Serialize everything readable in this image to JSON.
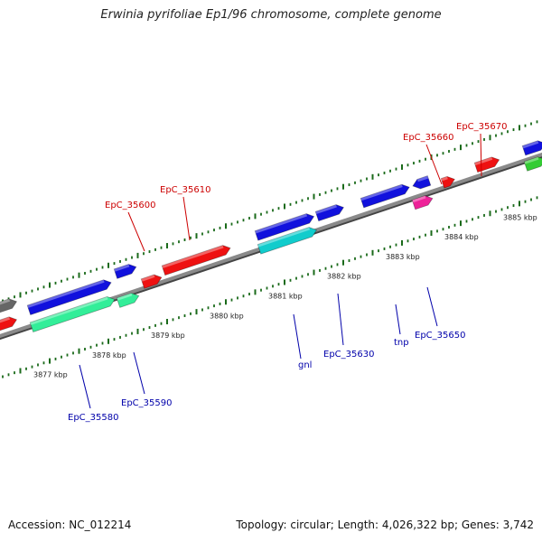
{
  "title": "Erwinia pyrifoliae Ep1/96 chromosome, complete genome",
  "footer": {
    "accession": "Accession: NC_012214",
    "summary": "Topology: circular; Length: 4,026,322 bp; Genes: 3,742"
  },
  "colors": {
    "backbone": "#8a8a8a",
    "top_strand_label": "#cc0000",
    "bottom_strand_label": "#0000aa",
    "tick": "#1a6a1a",
    "red": "#ee1111",
    "blue": "#1111dd",
    "mint": "#33ee99",
    "cyan": "#11cccc",
    "magenta": "#ee2299",
    "green": "#33cc33",
    "gray": "#666666"
  },
  "scale": {
    "unit": "kbp",
    "ticks": [
      {
        "kbp": 3877,
        "label": "3877 kbp"
      },
      {
        "kbp": 3878,
        "label": "3878 kbp"
      },
      {
        "kbp": 3879,
        "label": "3879 kbp"
      },
      {
        "kbp": 3880,
        "label": "3880 kbp"
      },
      {
        "kbp": 3881,
        "label": "3881 kbp"
      },
      {
        "kbp": 3882,
        "label": "3882 kbp"
      },
      {
        "kbp": 3883,
        "label": "3883 kbp"
      },
      {
        "kbp": 3884,
        "label": "3884 kbp"
      },
      {
        "kbp": 3885,
        "label": "3885 kbp"
      }
    ]
  },
  "gene_labels": [
    {
      "text": "EpC_35600",
      "strand": "top"
    },
    {
      "text": "EpC_35610",
      "strand": "top"
    },
    {
      "text": "EpC_35660",
      "strand": "top"
    },
    {
      "text": "EpC_35670",
      "strand": "top"
    },
    {
      "text": "EpC_35580",
      "strand": "bottom"
    },
    {
      "text": "EpC_35590",
      "strand": "bottom"
    },
    {
      "text": "gnl",
      "strand": "bottom"
    },
    {
      "text": "EpC_35630",
      "strand": "bottom"
    },
    {
      "text": "tnp",
      "strand": "bottom"
    },
    {
      "text": "EpC_35650",
      "strand": "bottom"
    }
  ]
}
